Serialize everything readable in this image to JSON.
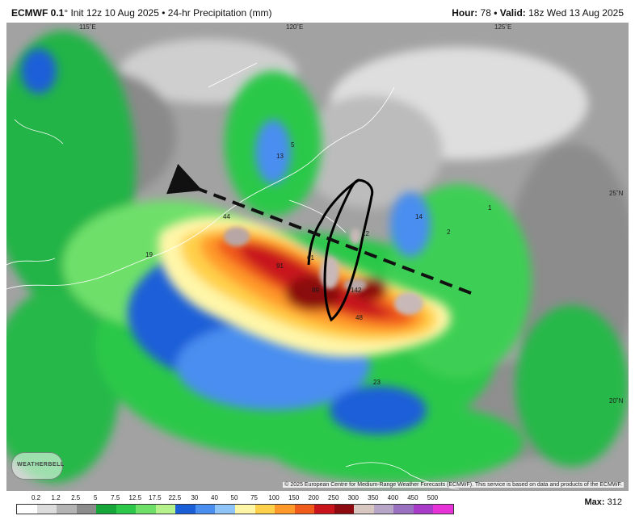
{
  "header": {
    "model": "ECMWF 0.1",
    "init": "° Init 12z 10 Aug 2025 • 24-hr Precipitation (mm)",
    "hour_label": "Hour:",
    "hour_value": "78",
    "valid_label": "• Valid:",
    "valid_value": "18z Wed 13 Aug 2025"
  },
  "map": {
    "lon_labels": [
      "115˚E",
      "120˚E",
      "125˚E"
    ],
    "lat_labels": [
      "25˚N",
      "20˚N"
    ],
    "value_labels": [
      "44",
      "61",
      "91",
      "142",
      "48",
      "19",
      "14",
      "23",
      "12",
      "89",
      "5",
      "13",
      "2",
      "1"
    ],
    "copyright": "© 2025 European Centre for Medium-Range Weather Forecasts (ECMWF). This service is based on data and products of the ECMWF.",
    "logo_text": "WEATHERBELL"
  },
  "legend": {
    "ticks": [
      "0.2",
      "1.2",
      "2.5",
      "5",
      "7.5",
      "12.5",
      "17.5",
      "22.5",
      "30",
      "40",
      "50",
      "75",
      "100",
      "150",
      "200",
      "250",
      "300",
      "350",
      "400",
      "450",
      "500"
    ],
    "colors": [
      "#ffffff",
      "#dcdcdc",
      "#b4b4b4",
      "#8c8c8c",
      "#16a63a",
      "#2cc84a",
      "#6ee06a",
      "#b6f28c",
      "#1b5fd8",
      "#4a8ef0",
      "#8ec4f8",
      "#fff6a8",
      "#ffd04a",
      "#ff9a2a",
      "#f05a1a",
      "#c8141a",
      "#8c0a10",
      "#d8c6c0",
      "#b8a6c8",
      "#9a70c0",
      "#a83cc8",
      "#e632d6"
    ],
    "max_label": "Max:",
    "max_value": "312"
  },
  "colors": {
    "land_outline": "#ffffff",
    "track_arrow": "#111111",
    "taiwan_outline": "#000000"
  }
}
